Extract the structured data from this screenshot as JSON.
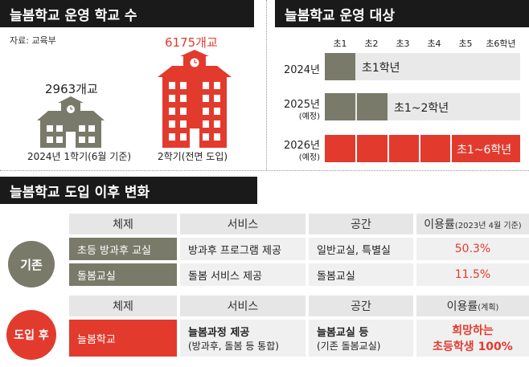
{
  "panel1": {
    "title": "늘봄학교 운영 학교 수",
    "source": "자료: 교육부",
    "before": {
      "count": "2963개교",
      "caption": "2024년 1학기(6월 기준)"
    },
    "after": {
      "count": "6175개교",
      "caption": "2학기(전면 도입)"
    }
  },
  "panel2": {
    "title": "늘봄학교 운영 대상",
    "grades": [
      "초1",
      "초2",
      "초3",
      "초4",
      "초5",
      "초6학년"
    ],
    "rows": [
      {
        "year": "2024년",
        "note": "",
        "label": "초1학년",
        "filled": 1
      },
      {
        "year": "2025년",
        "note": "(예정)",
        "label": "초1~2학년",
        "filled": 2
      },
      {
        "year": "2026년",
        "note": "(예정)",
        "label": "초1~6학년",
        "filled": 6
      }
    ],
    "colors": {
      "filled_2024_2025": "#7a7a6a",
      "filled_2026": "#e23b2e",
      "empty": "#e9e9e9"
    }
  },
  "panel3": {
    "title": "늘봄학교 도입 이후 변화",
    "existing": {
      "badge": "기존",
      "headers": {
        "system": "체제",
        "service": "서비스",
        "space": "공간",
        "rate": "이용률",
        "rate_note": "(2023년 4월 기준)"
      },
      "rows": [
        {
          "system": "초등 방과후 교실",
          "service": "방과후 프로그램 제공",
          "space": "일반교실, 특별실",
          "rate": "50.3%"
        },
        {
          "system": "돌봄교실",
          "service": "돌봄 서비스 제공",
          "space": "돌봄교실",
          "rate": "11.5%"
        }
      ]
    },
    "new": {
      "badge": "도입 후",
      "headers": {
        "system": "체제",
        "service": "서비스",
        "space": "공간",
        "rate": "이용률",
        "rate_note": "(계획)"
      },
      "row": {
        "system": "늘봄학교",
        "service_line1": "늘봄과정 제공",
        "service_line2": "(방과후, 돌봄 등 통합)",
        "space_line1": "늘봄교실 등",
        "space_line2": "(기존 돌봄교실)",
        "rate_line1": "희망하는",
        "rate_line2": "초등학생 100%"
      }
    }
  }
}
